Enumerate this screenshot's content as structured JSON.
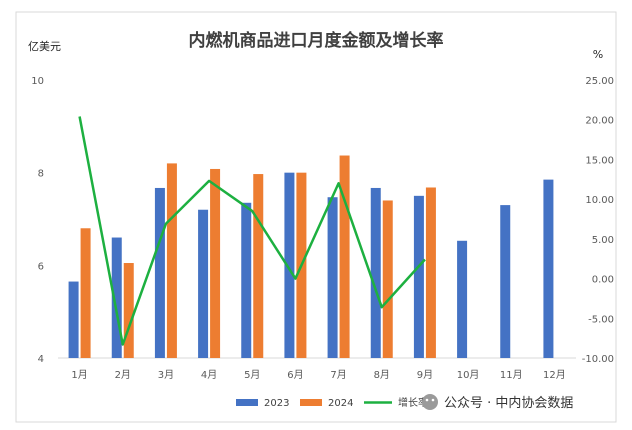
{
  "chart_data": {
    "type": "bar",
    "title": "内燃机商品进口月度金额及增长率",
    "ylabel_left": "亿美元",
    "ylabel_right": "%",
    "categories": [
      "1月",
      "2月",
      "3月",
      "4月",
      "5月",
      "6月",
      "7月",
      "8月",
      "9月",
      "10月",
      "11月",
      "12月"
    ],
    "ylim_left": [
      4,
      10
    ],
    "yticks_left": [
      4,
      6,
      8,
      10
    ],
    "ylim_right": [
      -10,
      25
    ],
    "yticks_right": [
      "-10.00",
      "-5.00",
      "0.00",
      "5.00",
      "10.00",
      "15.00",
      "20.00",
      "25.00"
    ],
    "series": [
      {
        "name": "2023",
        "kind": "bar",
        "axis": "left",
        "color": "#4472C4",
        "values": [
          5.65,
          6.6,
          7.67,
          7.2,
          7.35,
          8.0,
          7.47,
          7.67,
          7.5,
          6.53,
          7.3,
          7.85
        ]
      },
      {
        "name": "2024",
        "kind": "bar",
        "axis": "left",
        "color": "#ED7D31",
        "values": [
          6.8,
          6.05,
          8.2,
          8.08,
          7.97,
          8.0,
          8.37,
          7.4,
          7.68,
          null,
          null,
          null
        ]
      },
      {
        "name": "增长率",
        "kind": "line",
        "axis": "right",
        "color": "#1DB040",
        "values": [
          20.4,
          -8.3,
          6.9,
          12.3,
          8.5,
          0.0,
          12.0,
          -3.6,
          2.4,
          null,
          null,
          null
        ]
      }
    ],
    "grid": false,
    "legend": "bottom"
  },
  "watermark": {
    "text": "公众号 · 中内协会数据"
  }
}
